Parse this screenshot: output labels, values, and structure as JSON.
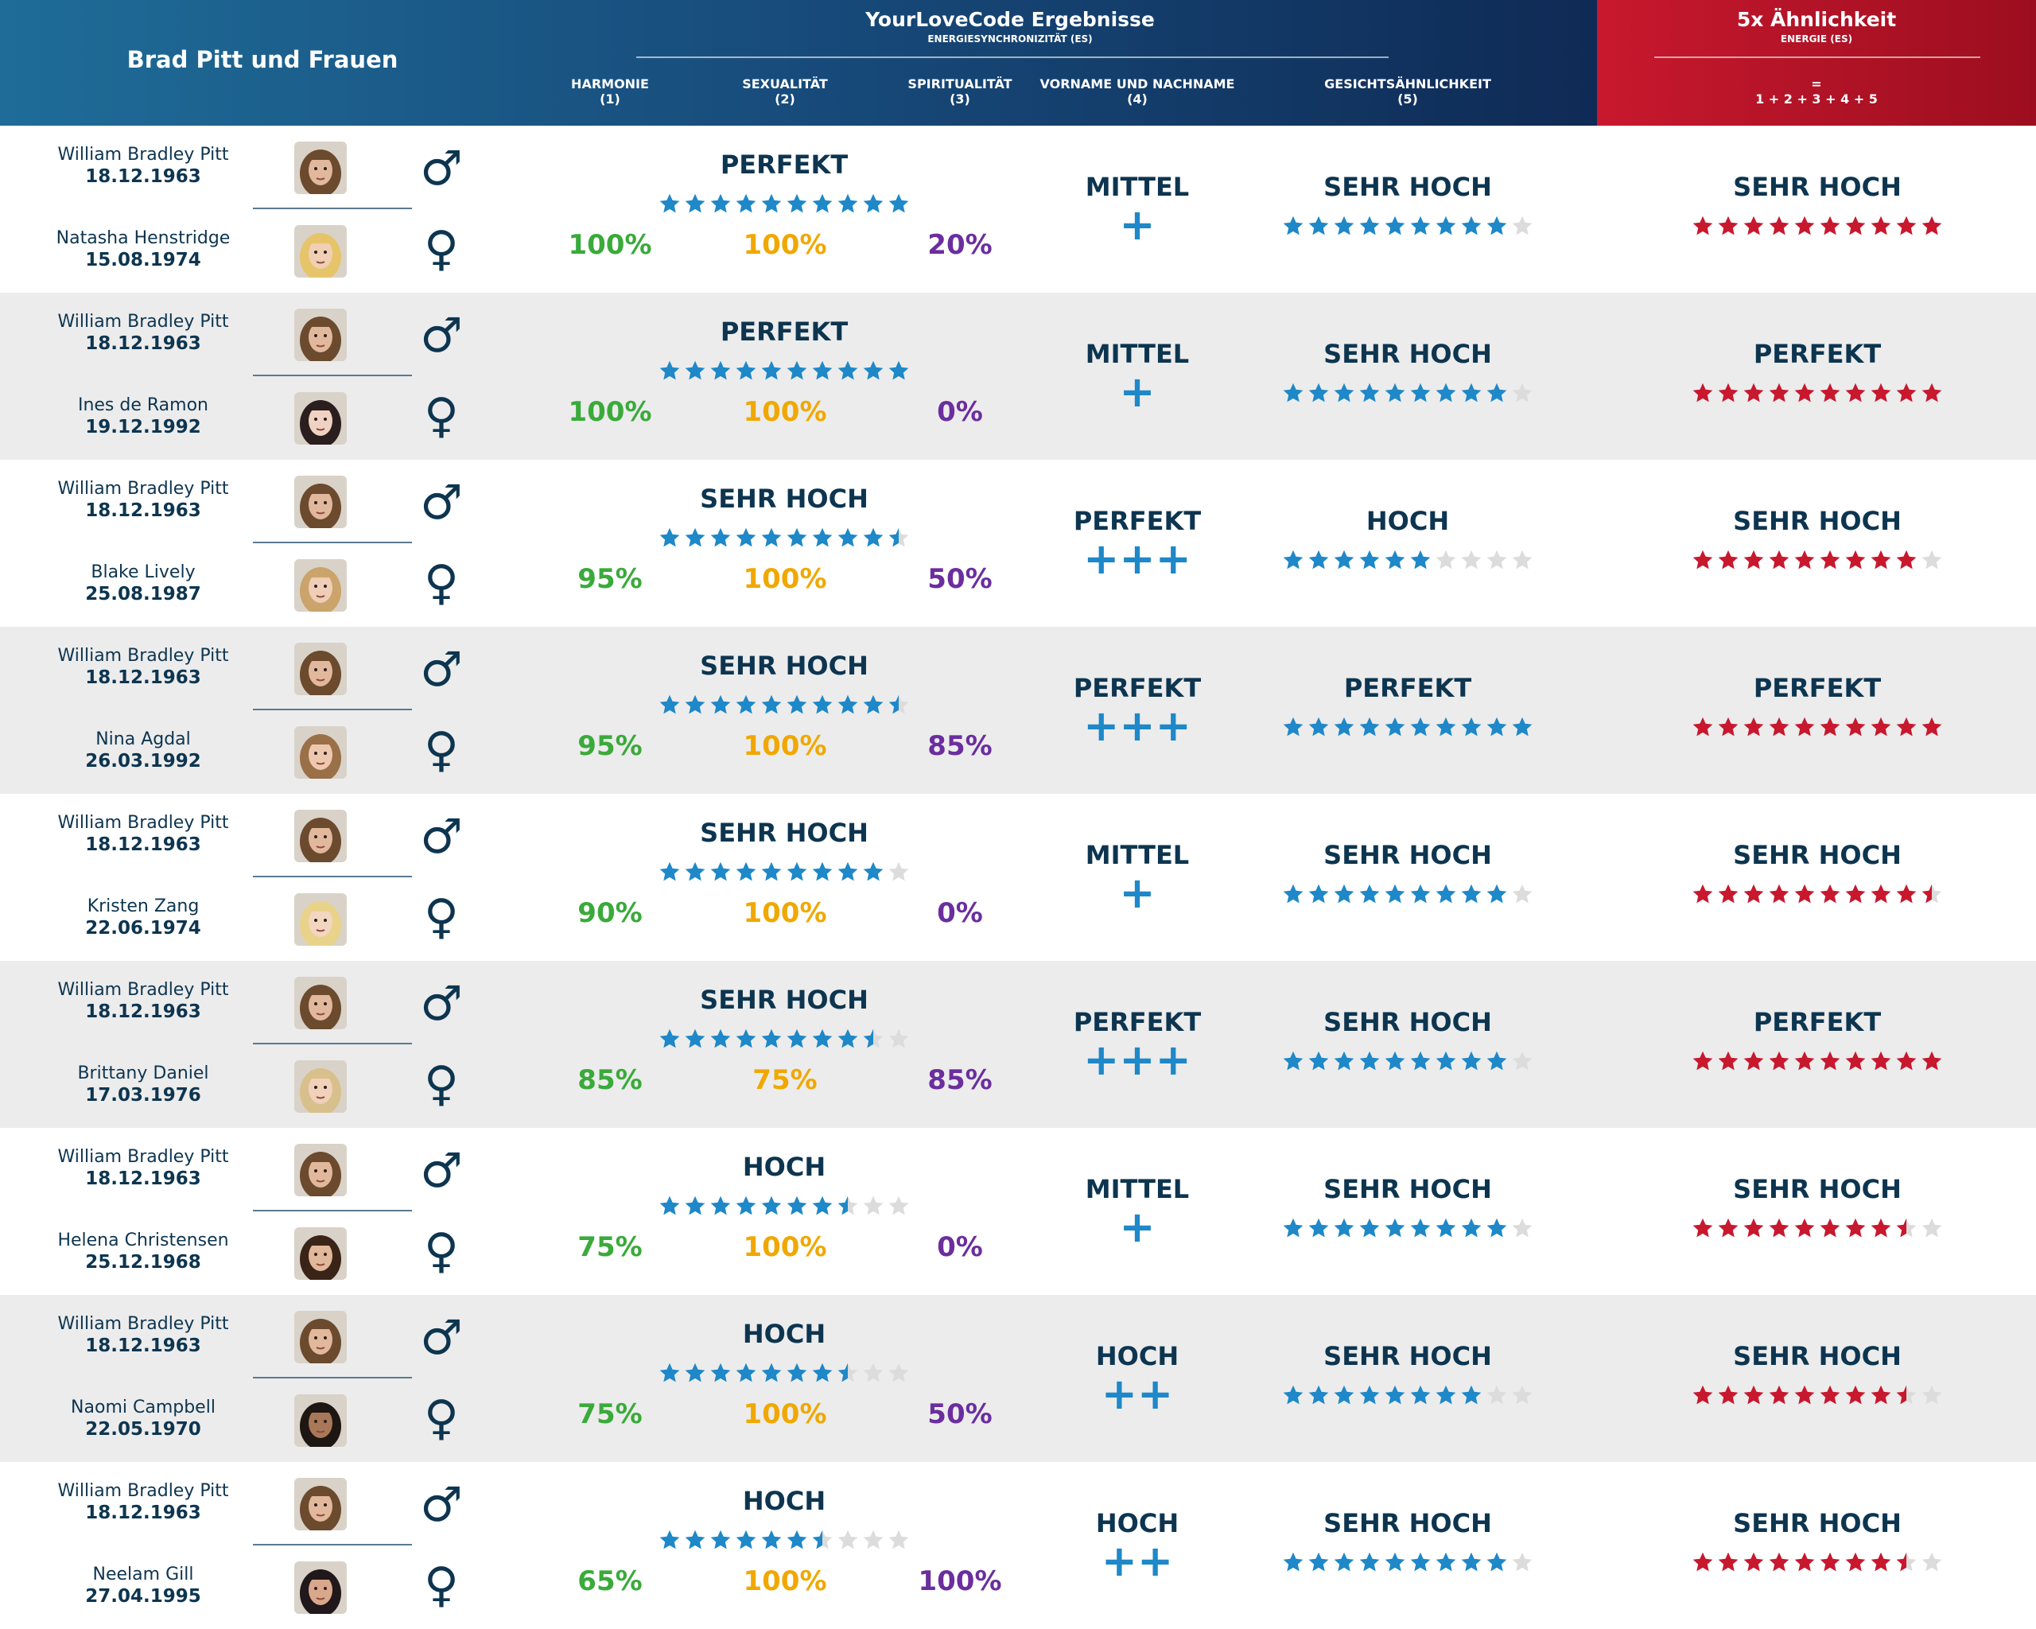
{
  "header": {
    "title": "Brad Pitt und Frauen",
    "main_title": "YourLoveCode Ergebnisse",
    "main_subtitle": "ENERGIESYNCHRONIZITÄT (ES)",
    "columns": [
      {
        "label": "HARMONIE",
        "num": "(1)"
      },
      {
        "label": "SEXUALITÄT",
        "num": "(2)"
      },
      {
        "label": "SPIRITUALITÄT",
        "num": "(3)"
      },
      {
        "label": "VORNAME UND NACHNAME",
        "num": "(4)"
      },
      {
        "label": "GESICHTSÄHNLICHKEIT",
        "num": "(5)"
      }
    ],
    "red_title": "5x Ähnlichkeit",
    "red_subtitle": "ENERGIE (ES)",
    "red_eq": "=",
    "red_formula": "1 + 2 + 3 + 4 + 5"
  },
  "colors": {
    "blue": "#1e88c8",
    "red": "#c8182e",
    "dark": "#0d3550",
    "green": "#3aaa3a",
    "orange": "#f0a800",
    "purple": "#6b2e9e",
    "empty_star": "#dcdcdc"
  },
  "symbols": {
    "male": "♂",
    "female": "♀"
  },
  "rows": [
    {
      "male_name": "William Bradley Pitt",
      "male_date": "18.12.1963",
      "female_name": "Natasha Henstridge",
      "female_date": "15.08.1974",
      "es_label": "PERFEKT",
      "es_stars": 10,
      "harmonie": "100%",
      "sexualitaet": "100%",
      "spiritualitaet": "20%",
      "name_label": "MITTEL",
      "name_plus": "+",
      "face_label": "SEHR HOCH",
      "face_stars": 9,
      "total_label": "SEHR HOCH",
      "total_stars": 10
    },
    {
      "male_name": "William Bradley Pitt",
      "male_date": "18.12.1963",
      "female_name": "Ines de Ramon",
      "female_date": "19.12.1992",
      "es_label": "PERFEKT",
      "es_stars": 10,
      "harmonie": "100%",
      "sexualitaet": "100%",
      "spiritualitaet": "0%",
      "name_label": "MITTEL",
      "name_plus": "+",
      "face_label": "SEHR HOCH",
      "face_stars": 9,
      "total_label": "PERFEKT",
      "total_stars": 10
    },
    {
      "male_name": "William Bradley Pitt",
      "male_date": "18.12.1963",
      "female_name": "Blake Lively",
      "female_date": "25.08.1987",
      "es_label": "SEHR HOCH",
      "es_stars": 9.5,
      "harmonie": "95%",
      "sexualitaet": "100%",
      "spiritualitaet": "50%",
      "name_label": "PERFEKT",
      "name_plus": "+++",
      "face_label": "HOCH",
      "face_stars": 6,
      "total_label": "SEHR HOCH",
      "total_stars": 9
    },
    {
      "male_name": "William Bradley Pitt",
      "male_date": "18.12.1963",
      "female_name": "Nina Agdal",
      "female_date": "26.03.1992",
      "es_label": "SEHR HOCH",
      "es_stars": 9.5,
      "harmonie": "95%",
      "sexualitaet": "100%",
      "spiritualitaet": "85%",
      "name_label": "PERFEKT",
      "name_plus": "+++",
      "face_label": "PERFEKT",
      "face_stars": 10,
      "total_label": "PERFEKT",
      "total_stars": 10
    },
    {
      "male_name": "William Bradley Pitt",
      "male_date": "18.12.1963",
      "female_name": "Kristen Zang",
      "female_date": "22.06.1974",
      "es_label": "SEHR HOCH",
      "es_stars": 9,
      "harmonie": "90%",
      "sexualitaet": "100%",
      "spiritualitaet": "0%",
      "name_label": "MITTEL",
      "name_plus": "+",
      "face_label": "SEHR HOCH",
      "face_stars": 9,
      "total_label": "SEHR HOCH",
      "total_stars": 9.5
    },
    {
      "male_name": "William Bradley Pitt",
      "male_date": "18.12.1963",
      "female_name": "Brittany Daniel",
      "female_date": "17.03.1976",
      "es_label": "SEHR HOCH",
      "es_stars": 8.5,
      "harmonie": "85%",
      "sexualitaet": "75%",
      "spiritualitaet": "85%",
      "name_label": "PERFEKT",
      "name_plus": "+++",
      "face_label": "SEHR HOCH",
      "face_stars": 9,
      "total_label": "PERFEKT",
      "total_stars": 10
    },
    {
      "male_name": "William Bradley Pitt",
      "male_date": "18.12.1963",
      "female_name": "Helena Christensen",
      "female_date": "25.12.1968",
      "es_label": "HOCH",
      "es_stars": 7.5,
      "harmonie": "75%",
      "sexualitaet": "100%",
      "spiritualitaet": "0%",
      "name_label": "MITTEL",
      "name_plus": "+",
      "face_label": "SEHR HOCH",
      "face_stars": 9,
      "total_label": "SEHR HOCH",
      "total_stars": 8.5
    },
    {
      "male_name": "William Bradley Pitt",
      "male_date": "18.12.1963",
      "female_name": "Naomi Campbell",
      "female_date": "22.05.1970",
      "es_label": "HOCH",
      "es_stars": 7.5,
      "harmonie": "75%",
      "sexualitaet": "100%",
      "spiritualitaet": "50%",
      "name_label": "HOCH",
      "name_plus": "++",
      "face_label": "SEHR HOCH",
      "face_stars": 8,
      "total_label": "SEHR HOCH",
      "total_stars": 8.5
    },
    {
      "male_name": "William Bradley Pitt",
      "male_date": "18.12.1963",
      "female_name": "Neelam Gill",
      "female_date": "27.04.1995",
      "es_label": "HOCH",
      "es_stars": 6.5,
      "harmonie": "65%",
      "sexualitaet": "100%",
      "spiritualitaet": "100%",
      "name_label": "HOCH",
      "name_plus": "++",
      "face_label": "SEHR HOCH",
      "face_stars": 9,
      "total_label": "SEHR HOCH",
      "total_stars": 8.5
    }
  ]
}
